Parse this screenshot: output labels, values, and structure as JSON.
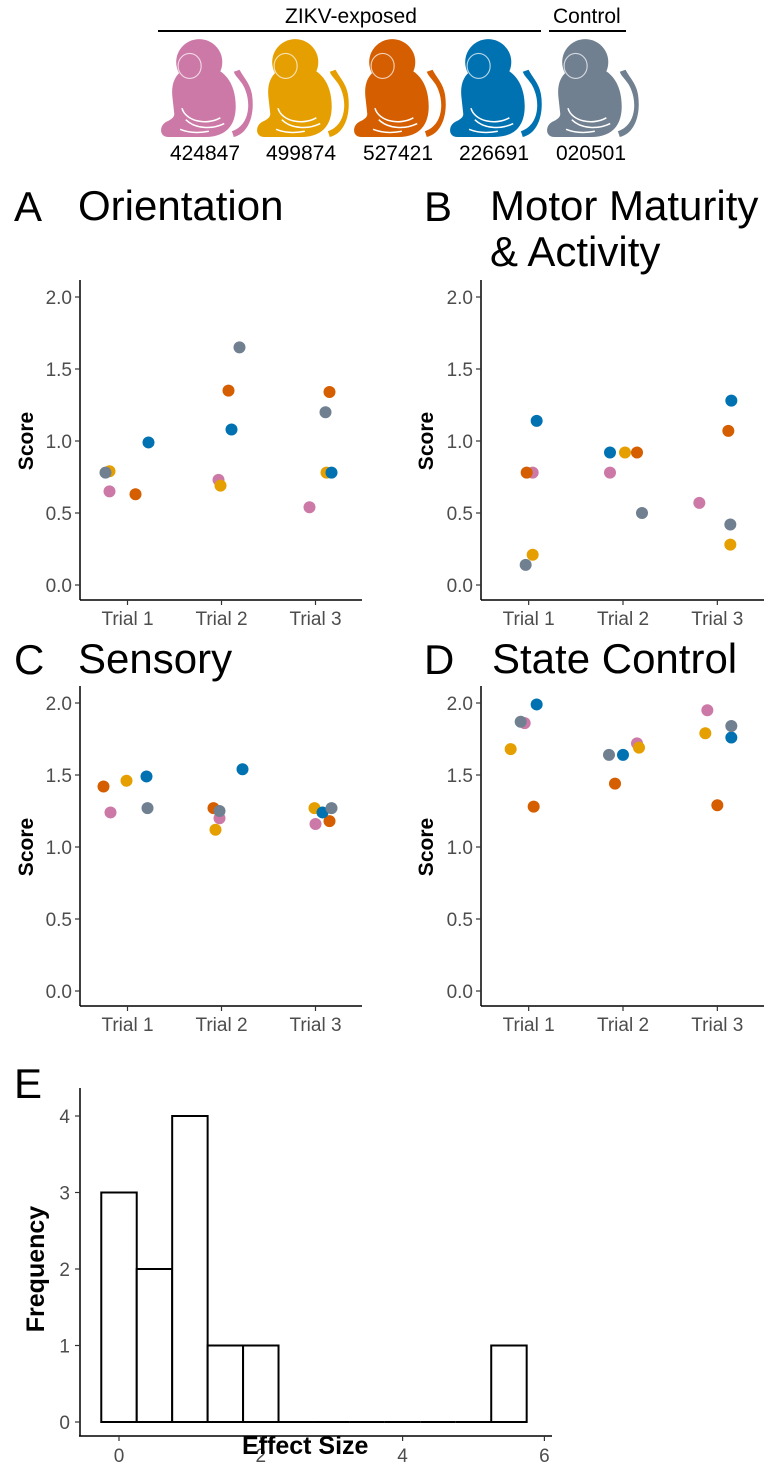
{
  "header": {
    "groups": [
      {
        "label": "ZIKV-exposed"
      },
      {
        "label": "Control"
      }
    ],
    "subjects": [
      {
        "id": "424847",
        "color": "#CC79A7",
        "icon": "monkey-icon"
      },
      {
        "id": "499874",
        "color": "#E69F00",
        "icon": "monkey-icon"
      },
      {
        "id": "527421",
        "color": "#D55E00",
        "icon": "monkey-icon"
      },
      {
        "id": "226691",
        "color": "#0072B2",
        "icon": "monkey-icon"
      },
      {
        "id": "020501",
        "color": "#708090",
        "icon": "monkey-icon"
      }
    ]
  },
  "panels": [
    {
      "letter": "A",
      "title": "Orientation"
    },
    {
      "letter": "B",
      "title": "Motor Maturity\n& Activity"
    },
    {
      "letter": "C",
      "title": "Sensory"
    },
    {
      "letter": "D",
      "title": "State Control"
    },
    {
      "letter": "E",
      "title": ""
    }
  ],
  "chart_data": [
    {
      "type": "scatter",
      "title": "Orientation",
      "ylabel": "Score",
      "xlabel": "",
      "categories": [
        "Trial 1",
        "Trial 2",
        "Trial 3"
      ],
      "ylim": [
        0,
        2
      ],
      "yticks": [
        "0.0",
        "0.5",
        "1.0",
        "1.5",
        "2.0"
      ],
      "series": [
        {
          "name": "424847",
          "color": "#CC79A7",
          "values": [
            0.65,
            0.73,
            0.54
          ]
        },
        {
          "name": "499874",
          "color": "#E69F00",
          "values": [
            0.79,
            0.69,
            0.78
          ]
        },
        {
          "name": "527421",
          "color": "#D55E00",
          "values": [
            0.63,
            1.35,
            1.34
          ]
        },
        {
          "name": "226691",
          "color": "#0072B2",
          "values": [
            0.99,
            1.08,
            0.78
          ]
        },
        {
          "name": "020501",
          "color": "#708090",
          "values": [
            0.78,
            1.65,
            1.2
          ]
        }
      ]
    },
    {
      "type": "scatter",
      "title": "Motor Maturity & Activity",
      "ylabel": "Score",
      "xlabel": "",
      "categories": [
        "Trial 1",
        "Trial 2",
        "Trial 3"
      ],
      "ylim": [
        0,
        2
      ],
      "yticks": [
        "0.0",
        "0.5",
        "1.0",
        "1.5",
        "2.0"
      ],
      "series": [
        {
          "name": "424847",
          "color": "#CC79A7",
          "values": [
            0.78,
            0.78,
            0.57
          ]
        },
        {
          "name": "499874",
          "color": "#E69F00",
          "values": [
            0.21,
            0.92,
            0.28
          ]
        },
        {
          "name": "527421",
          "color": "#D55E00",
          "values": [
            0.78,
            0.92,
            1.07
          ]
        },
        {
          "name": "226691",
          "color": "#0072B2",
          "values": [
            1.14,
            0.92,
            1.28
          ]
        },
        {
          "name": "020501",
          "color": "#708090",
          "values": [
            0.14,
            0.5,
            0.42
          ]
        }
      ]
    },
    {
      "type": "scatter",
      "title": "Sensory",
      "ylabel": "Score",
      "xlabel": "",
      "categories": [
        "Trial 1",
        "Trial 2",
        "Trial 3"
      ],
      "ylim": [
        0,
        2
      ],
      "yticks": [
        "0.0",
        "0.5",
        "1.0",
        "1.5",
        "2.0"
      ],
      "series": [
        {
          "name": "424847",
          "color": "#CC79A7",
          "values": [
            1.24,
            1.2,
            1.16
          ]
        },
        {
          "name": "499874",
          "color": "#E69F00",
          "values": [
            1.46,
            1.12,
            1.27
          ]
        },
        {
          "name": "527421",
          "color": "#D55E00",
          "values": [
            1.42,
            1.27,
            1.18
          ]
        },
        {
          "name": "226691",
          "color": "#0072B2",
          "values": [
            1.49,
            1.54,
            1.24
          ]
        },
        {
          "name": "020501",
          "color": "#708090",
          "values": [
            1.27,
            1.25,
            1.27
          ]
        }
      ]
    },
    {
      "type": "scatter",
      "title": "State Control",
      "ylabel": "Score",
      "xlabel": "",
      "categories": [
        "Trial 1",
        "Trial 2",
        "Trial 3"
      ],
      "ylim": [
        0,
        2
      ],
      "yticks": [
        "0.0",
        "0.5",
        "1.0",
        "1.5",
        "2.0"
      ],
      "series": [
        {
          "name": "424847",
          "color": "#CC79A7",
          "values": [
            1.86,
            1.72,
            1.95
          ]
        },
        {
          "name": "499874",
          "color": "#E69F00",
          "values": [
            1.68,
            1.69,
            1.79
          ]
        },
        {
          "name": "527421",
          "color": "#D55E00",
          "values": [
            1.28,
            1.44,
            1.29
          ]
        },
        {
          "name": "226691",
          "color": "#0072B2",
          "values": [
            1.99,
            1.64,
            1.76
          ]
        },
        {
          "name": "020501",
          "color": "#708090",
          "values": [
            1.87,
            1.64,
            1.84
          ]
        }
      ]
    },
    {
      "type": "bar",
      "subtype": "histogram",
      "title": "",
      "xlabel": "Effect Size",
      "ylabel": "Frequency",
      "xlim": [
        -0.25,
        6
      ],
      "ylim": [
        0,
        4
      ],
      "xticks": [
        "0",
        "2",
        "4",
        "6"
      ],
      "yticks": [
        "0",
        "1",
        "2",
        "3",
        "4"
      ],
      "bin_width": 0.5,
      "bins": [
        {
          "start": -0.25,
          "end": 0.25,
          "count": 3
        },
        {
          "start": 0.25,
          "end": 0.75,
          "count": 2
        },
        {
          "start": 0.75,
          "end": 1.25,
          "count": 4
        },
        {
          "start": 1.25,
          "end": 1.75,
          "count": 1
        },
        {
          "start": 1.75,
          "end": 2.25,
          "count": 1
        },
        {
          "start": 2.25,
          "end": 2.75,
          "count": 0
        },
        {
          "start": 2.75,
          "end": 3.25,
          "count": 0
        },
        {
          "start": 3.25,
          "end": 3.75,
          "count": 0
        },
        {
          "start": 3.75,
          "end": 4.25,
          "count": 0
        },
        {
          "start": 4.25,
          "end": 4.75,
          "count": 0
        },
        {
          "start": 4.75,
          "end": 5.25,
          "count": 0
        },
        {
          "start": 5.25,
          "end": 5.75,
          "count": 1
        }
      ]
    }
  ]
}
